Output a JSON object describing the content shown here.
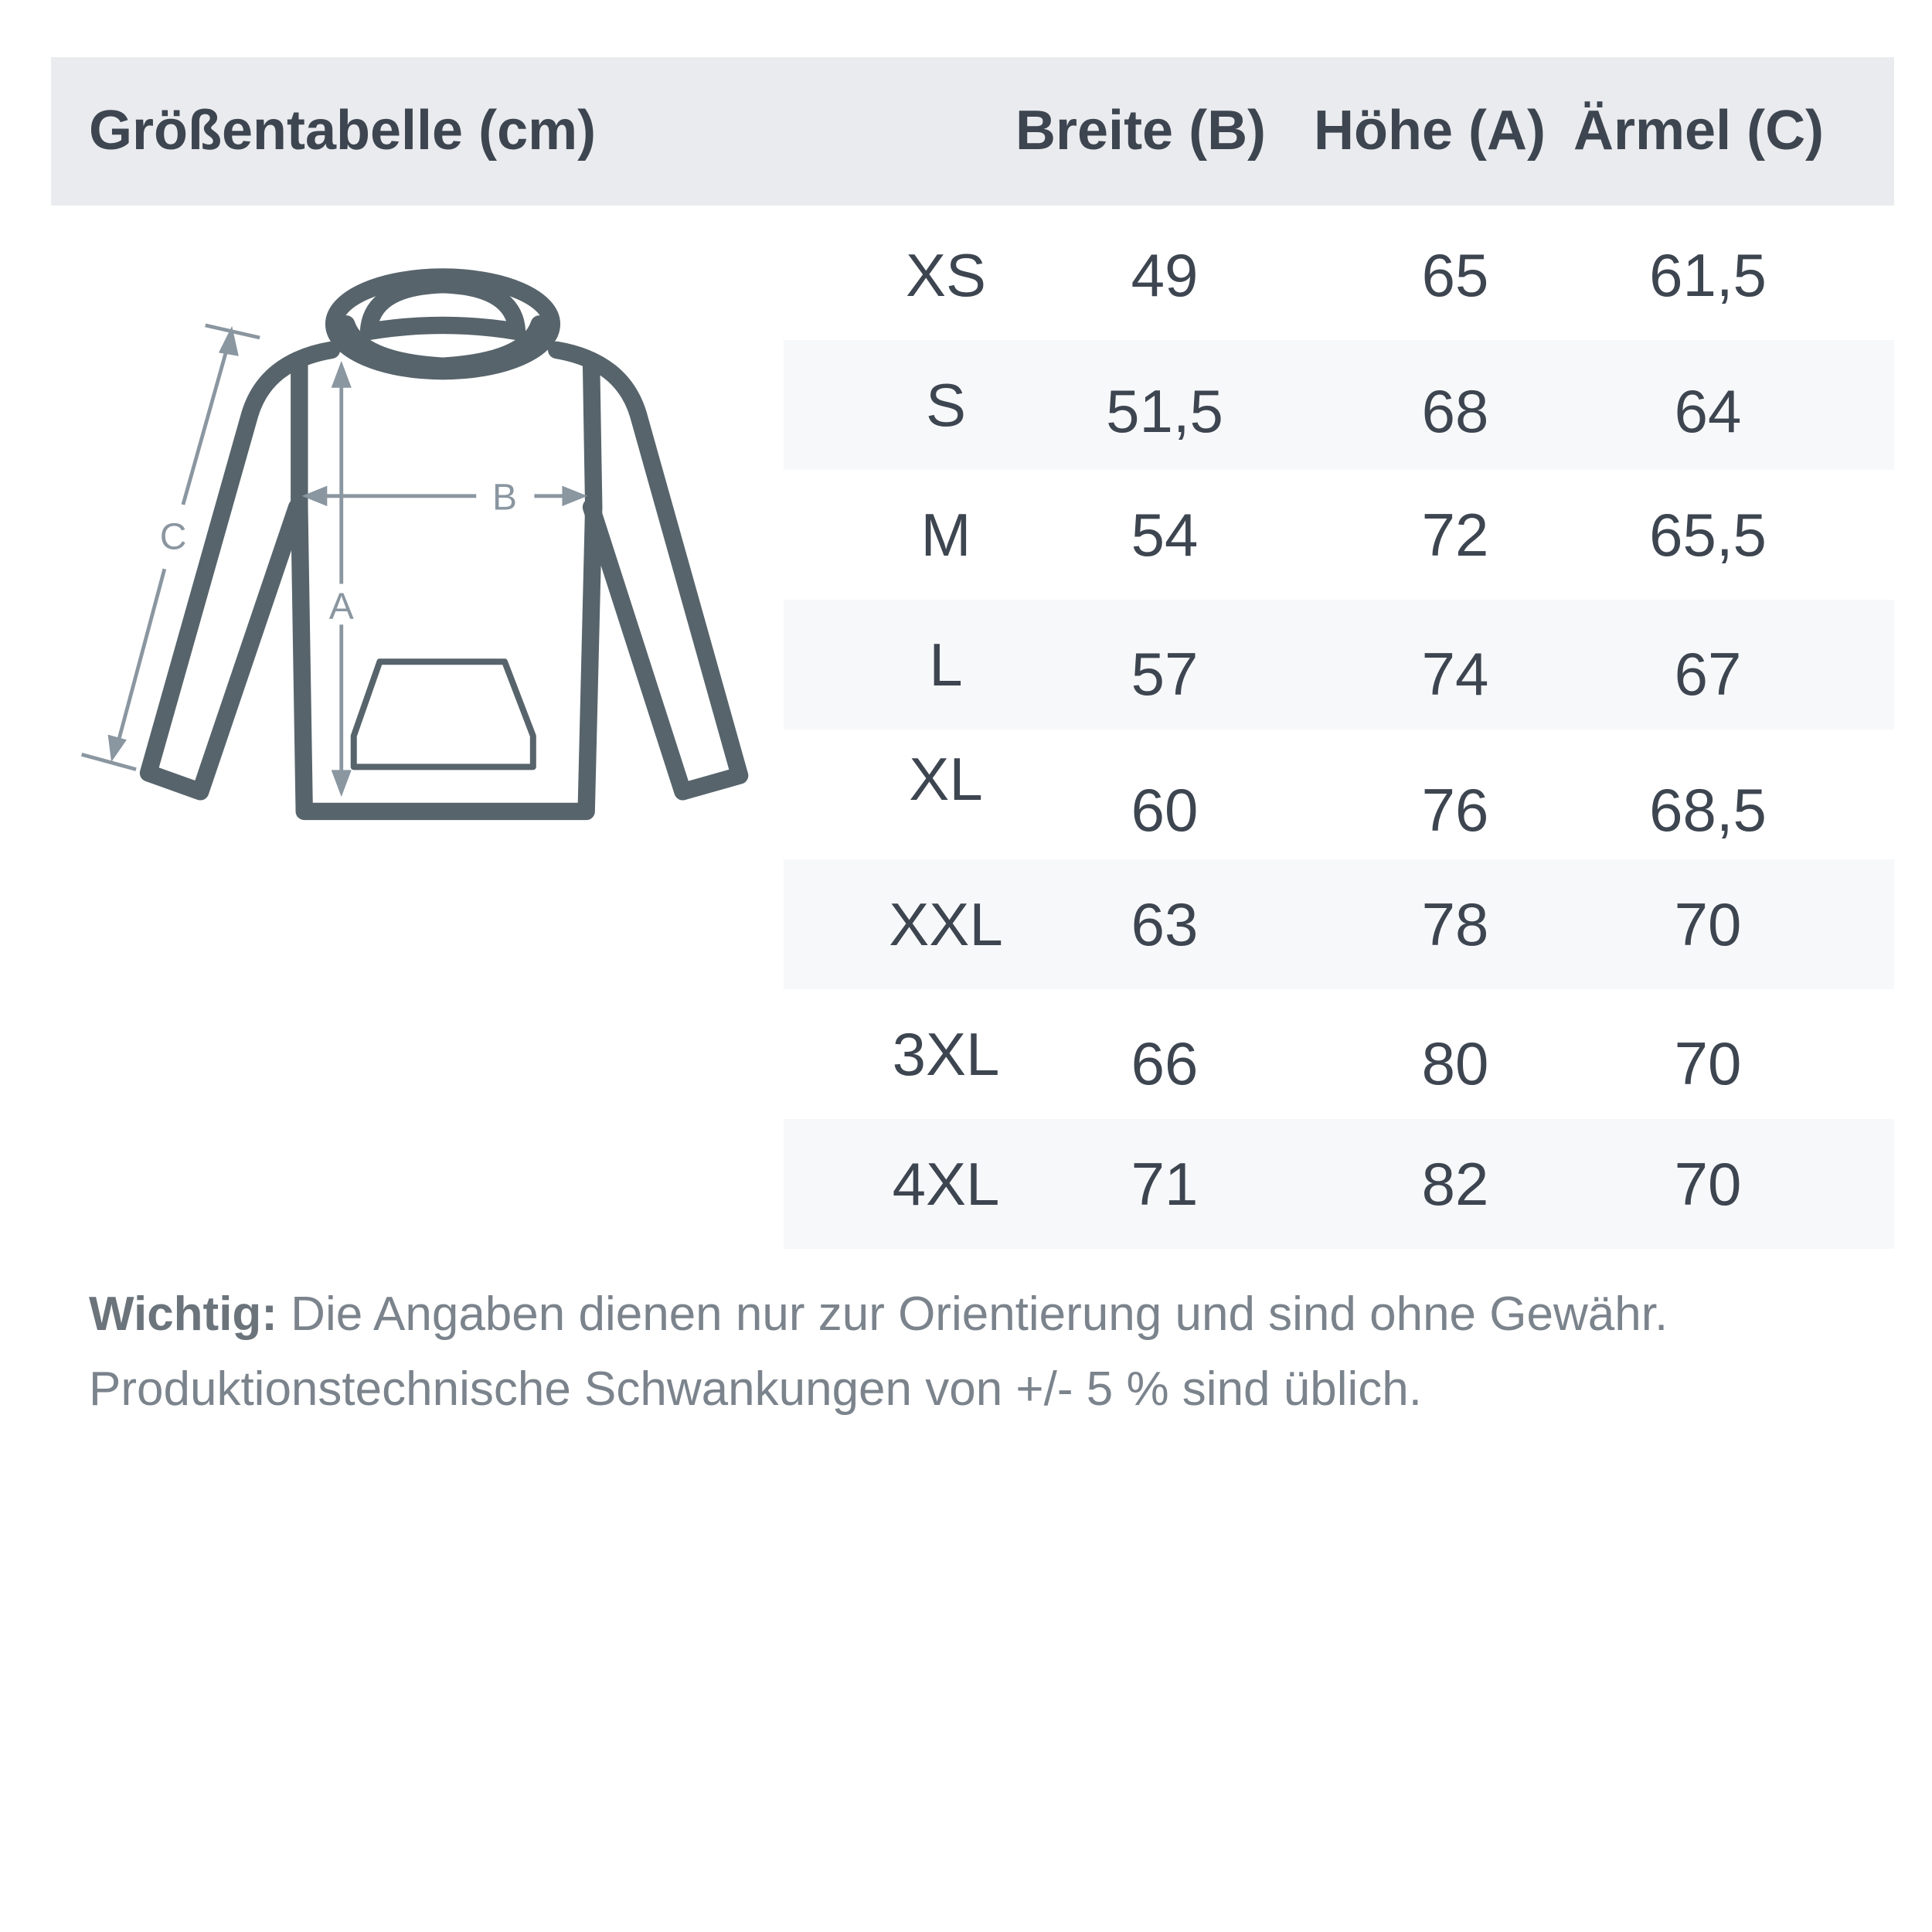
{
  "header": {
    "title": "Größentabelle (cm)",
    "columns": [
      "Breite (B)",
      "Höhe (A)",
      "Ärmel (C)"
    ]
  },
  "diagram_labels": {
    "a": "A",
    "b": "B",
    "c": "C"
  },
  "rows": [
    {
      "size": "XS",
      "b": "49",
      "a": "65",
      "c": "61,5"
    },
    {
      "size": "S",
      "b": "51,5",
      "a": "68",
      "c": "64"
    },
    {
      "size": "M",
      "b": "54",
      "a": "72",
      "c": "65,5"
    },
    {
      "size": "L",
      "b": "57",
      "a": "74",
      "c": "67"
    },
    {
      "size": "XL",
      "b": "60",
      "a": "76",
      "c": "68,5"
    },
    {
      "size": "XXL",
      "b": "63",
      "a": "78",
      "c": "70"
    },
    {
      "size": "3XL",
      "b": "66",
      "a": "80",
      "c": "70"
    },
    {
      "size": "4XL",
      "b": "71",
      "a": "82",
      "c": "70"
    }
  ],
  "note": {
    "label": "Wichtig:",
    "line1": " Die Angaben dienen nur zur Orientierung und sind ohne Gewähr.",
    "line2": "Produktionstechnische Schwankungen von +/- 5 % sind üblich."
  },
  "colors": {
    "header_bg": "#eaebee",
    "row_shaded": "#f7f8fa",
    "outline": "#57646b",
    "measure": "#8a96a0"
  }
}
